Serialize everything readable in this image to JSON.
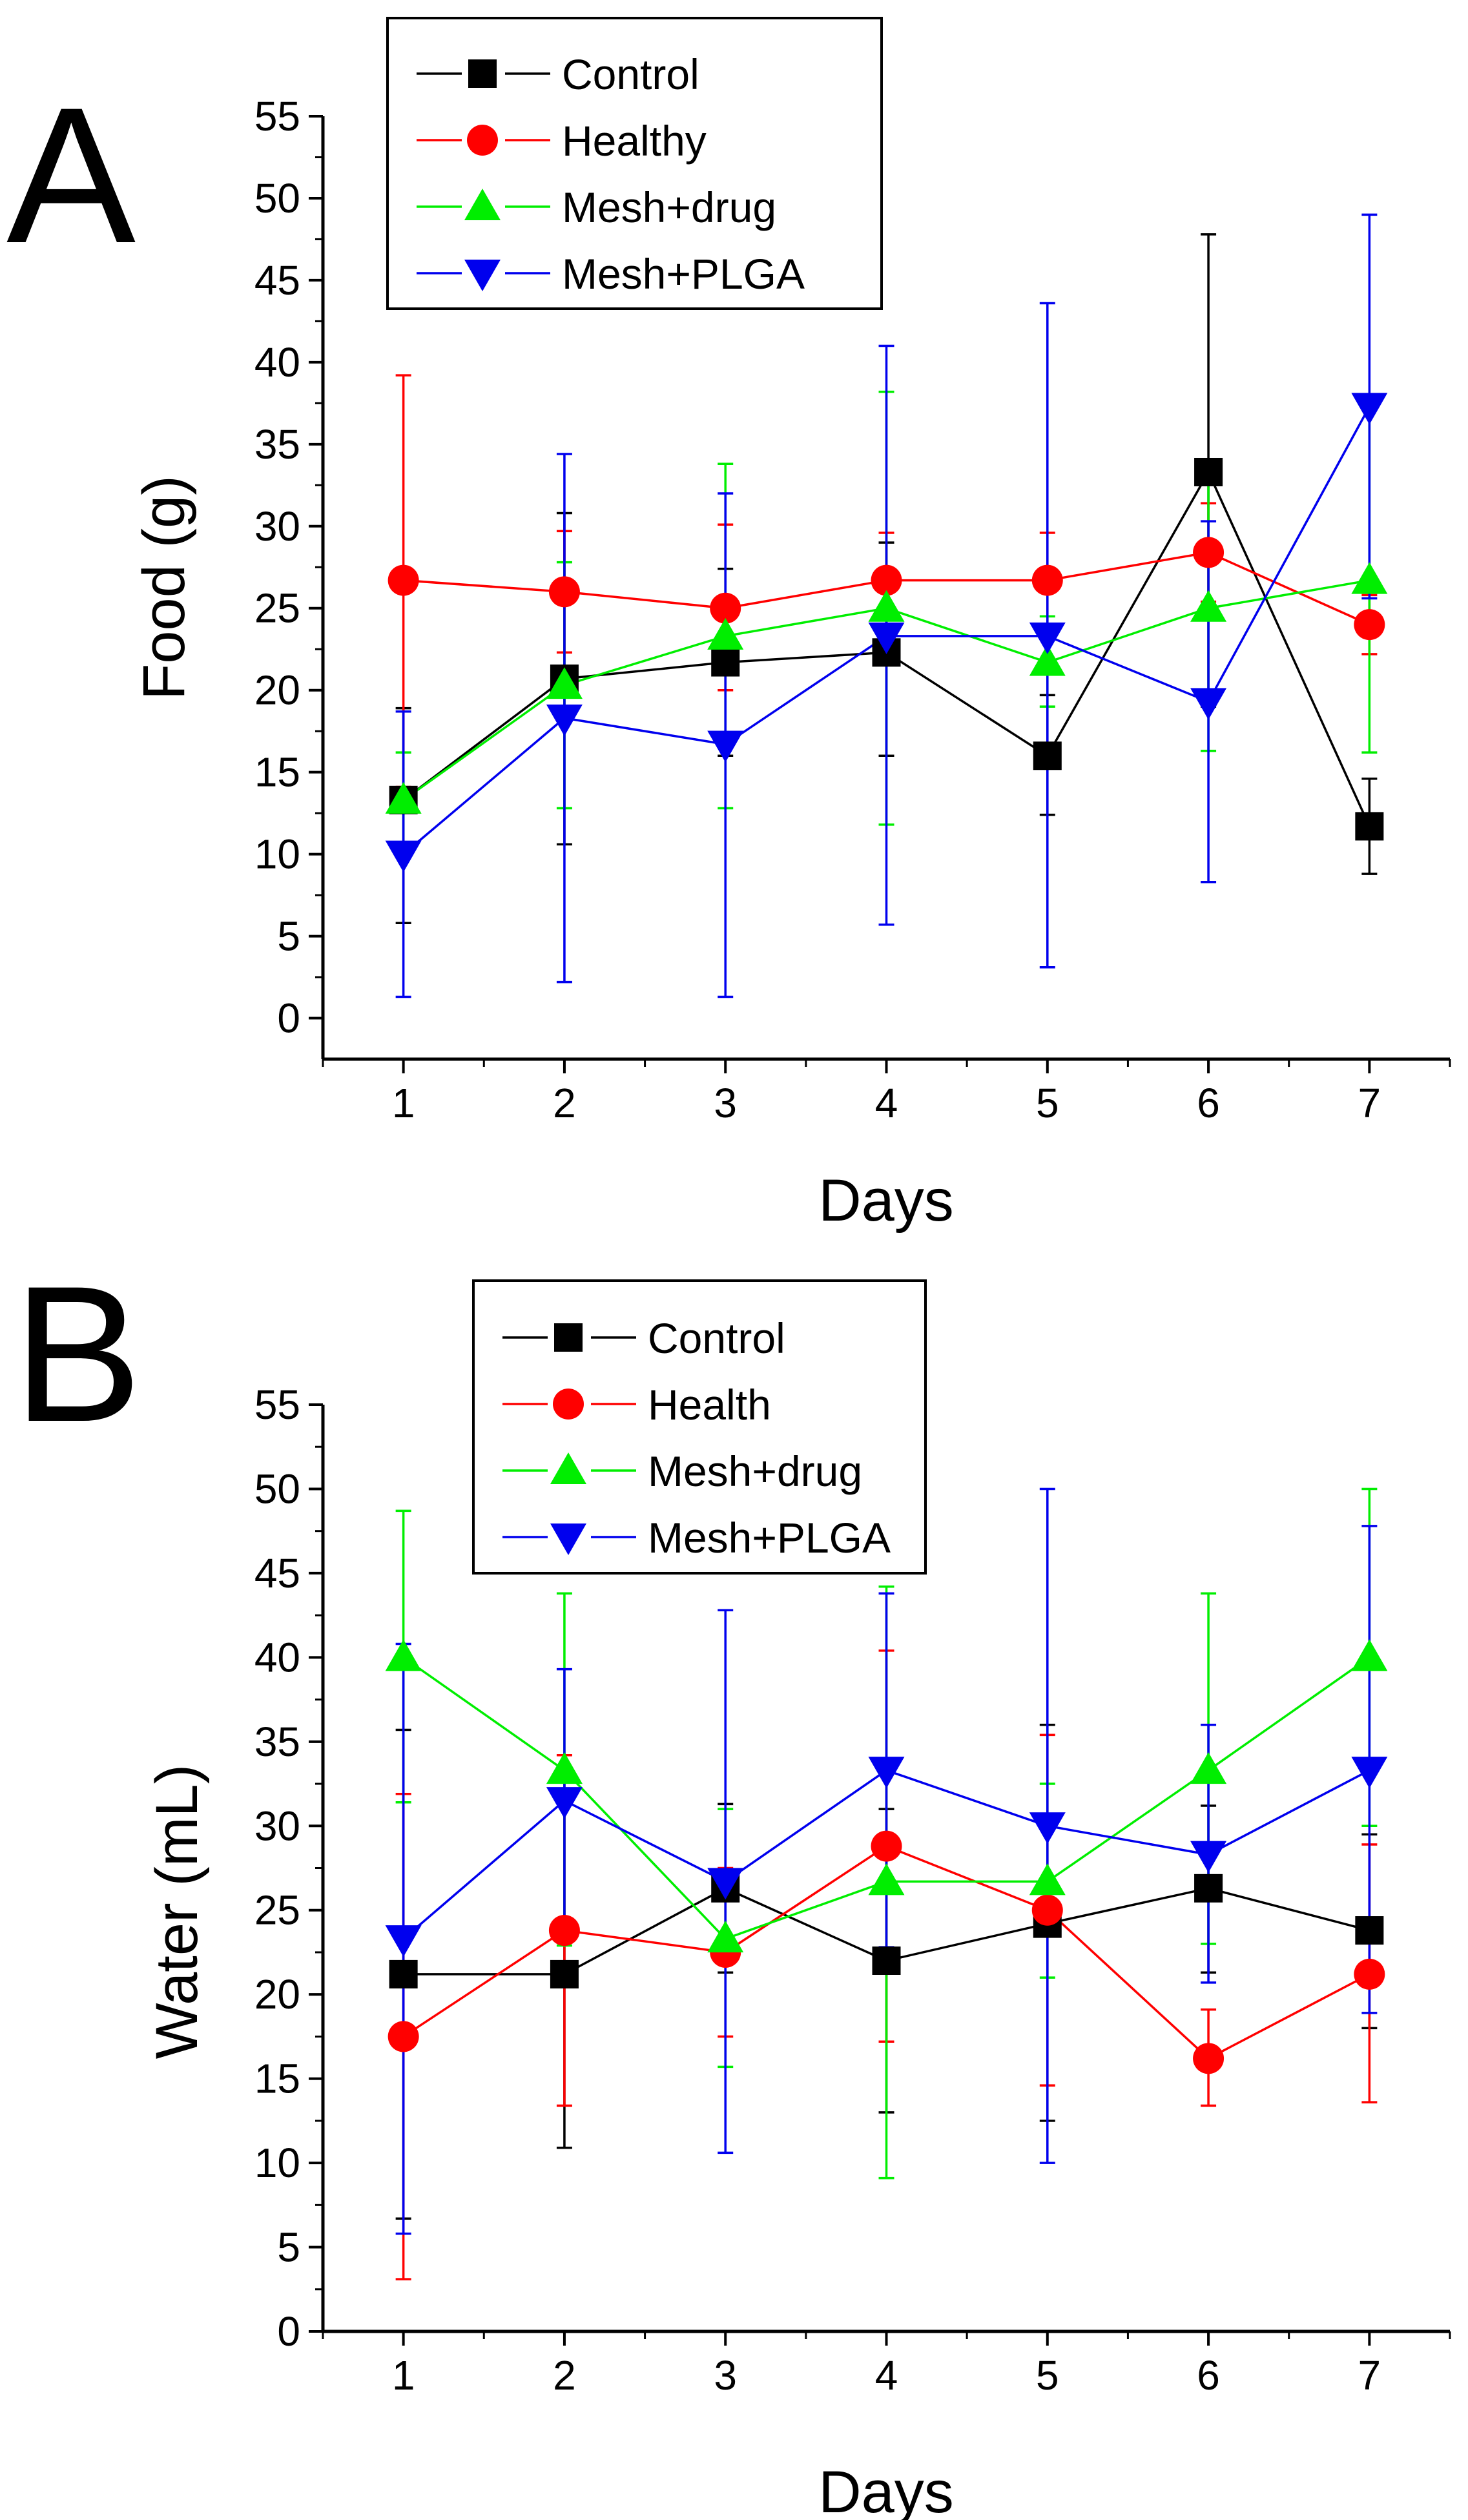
{
  "chart_data": [
    {
      "panel_label": "A",
      "type": "line",
      "title": "",
      "xlabel": "Days",
      "ylabel": "Food (g)",
      "x": [
        1,
        2,
        3,
        4,
        5,
        6,
        7
      ],
      "xlim": [
        0.5,
        7.5
      ],
      "ylim": [
        -2.5,
        55
      ],
      "xticks": [
        "1",
        "2",
        "3",
        "4",
        "5",
        "6",
        "7"
      ],
      "yticks": [
        "0",
        "5",
        "10",
        "15",
        "20",
        "25",
        "30",
        "35",
        "40",
        "45",
        "50",
        "55"
      ],
      "legend_position": "top-left",
      "series": [
        {
          "name": "Control",
          "marker": "square",
          "color": "#000000",
          "values": [
            13.3,
            20.7,
            21.7,
            22.3,
            16.0,
            33.3,
            11.7
          ],
          "error_low": [
            5.8,
            10.6,
            16.0,
            16.0,
            12.4,
            19.0,
            8.8
          ],
          "error_high": [
            18.9,
            30.8,
            27.4,
            29.0,
            19.7,
            47.8,
            14.6
          ]
        },
        {
          "name": "Healthy",
          "marker": "circle",
          "color": "#ff0000",
          "values": [
            26.7,
            26.0,
            25.0,
            26.7,
            26.7,
            28.4,
            24.0
          ],
          "error_low": [
            14.1,
            22.3,
            20.0,
            23.7,
            23.7,
            25.4,
            22.2
          ],
          "error_high": [
            39.2,
            29.7,
            30.1,
            29.6,
            29.6,
            31.4,
            25.8
          ]
        },
        {
          "name": "Mesh+drug",
          "marker": "triangle-up",
          "color": "#00ee00",
          "values": [
            13.3,
            20.3,
            23.3,
            25.0,
            21.7,
            25.0,
            26.7
          ],
          "error_low": [
            10.5,
            12.8,
            12.8,
            11.8,
            19.0,
            16.3,
            16.2
          ],
          "error_high": [
            16.2,
            27.8,
            33.8,
            38.2,
            24.5,
            33.7,
            37.2
          ]
        },
        {
          "name": "Mesh+PLGA",
          "marker": "triangle-down",
          "color": "#0000ee",
          "values": [
            10.0,
            18.3,
            16.7,
            23.3,
            23.3,
            19.3,
            37.3
          ],
          "error_low": [
            1.3,
            2.2,
            1.3,
            5.7,
            3.1,
            8.3,
            25.6
          ],
          "error_high": [
            18.7,
            34.4,
            32.0,
            41.0,
            43.6,
            30.3,
            49.0
          ]
        }
      ]
    },
    {
      "panel_label": "B",
      "type": "line",
      "title": "",
      "xlabel": "Days",
      "ylabel": "Water (mL)",
      "x": [
        1,
        2,
        3,
        4,
        5,
        6,
        7
      ],
      "xlim": [
        0.5,
        7.5
      ],
      "ylim": [
        0,
        55
      ],
      "xticks": [
        "1",
        "2",
        "3",
        "4",
        "5",
        "6",
        "7"
      ],
      "yticks": [
        "0",
        "5",
        "10",
        "15",
        "20",
        "25",
        "30",
        "35",
        "40",
        "45",
        "50",
        "55"
      ],
      "legend_position": "top-center",
      "series": [
        {
          "name": "Control",
          "marker": "square",
          "color": "#000000",
          "values": [
            21.2,
            21.2,
            26.3,
            22.0,
            24.2,
            26.3,
            23.8
          ],
          "error_low": [
            6.7,
            10.9,
            21.3,
            13.0,
            12.5,
            21.3,
            18.0
          ],
          "error_high": [
            35.7,
            31.5,
            31.3,
            31.0,
            36.0,
            31.2,
            29.5
          ]
        },
        {
          "name": "Health",
          "marker": "circle",
          "color": "#ff0000",
          "values": [
            17.5,
            23.8,
            22.5,
            28.8,
            25.0,
            16.2,
            21.2
          ],
          "error_low": [
            3.1,
            13.4,
            17.5,
            17.2,
            14.6,
            13.4,
            13.6
          ],
          "error_high": [
            31.9,
            34.2,
            27.5,
            40.4,
            35.4,
            19.1,
            28.9
          ]
        },
        {
          "name": "Mesh+drug",
          "marker": "triangle-up",
          "color": "#00ee00",
          "values": [
            40.0,
            33.3,
            23.3,
            26.7,
            26.7,
            33.3,
            40.0
          ],
          "error_low": [
            31.4,
            22.9,
            15.7,
            9.1,
            21.0,
            23.0,
            30.0
          ],
          "error_high": [
            48.7,
            43.8,
            31.0,
            44.2,
            32.5,
            43.8,
            50.0
          ]
        },
        {
          "name": "Mesh+PLGA",
          "marker": "triangle-down",
          "color": "#0000ee",
          "values": [
            23.3,
            31.5,
            26.7,
            33.3,
            30.0,
            28.3,
            33.3
          ],
          "error_low": [
            5.8,
            23.7,
            10.6,
            22.8,
            10.0,
            20.7,
            18.9
          ],
          "error_high": [
            40.8,
            39.3,
            42.8,
            43.8,
            50.0,
            36.0,
            47.8
          ]
        }
      ]
    }
  ]
}
